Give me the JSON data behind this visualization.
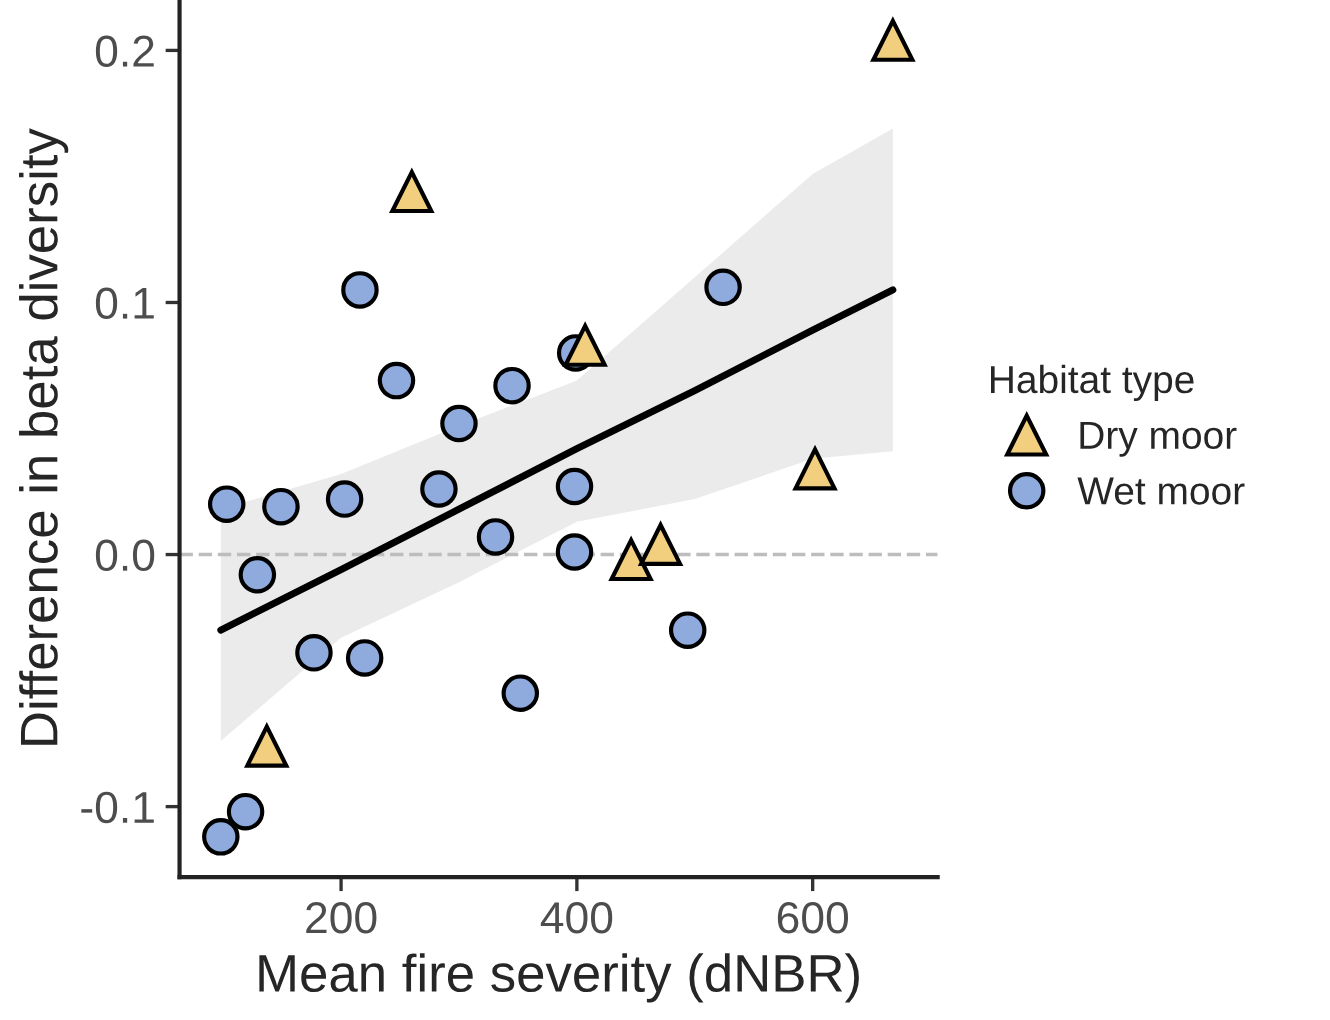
{
  "chart_data": {
    "type": "scatter",
    "xlabel": "Mean fire severity (dNBR)",
    "ylabel": "Difference in beta diversity",
    "legend_title": "Habitat type",
    "legend": "right",
    "grid": false,
    "xlim": [
      63,
      706
    ],
    "xticks": [
      200,
      400,
      600
    ],
    "ylim": [
      -0.128,
      0.22
    ],
    "yticks": [
      {
        "value": -0.1,
        "label": "-0.1"
      },
      {
        "value": 0.0,
        "label": "0.0"
      },
      {
        "value": 0.1,
        "label": "0.1"
      },
      {
        "value": 0.2,
        "label": "0.2"
      }
    ],
    "ref_lines": [
      {
        "axis": "y",
        "value": 0,
        "color": "#bdbdbd",
        "line_style": "dashed"
      }
    ],
    "series": [
      {
        "type": "line",
        "color": "#000000",
        "x": [
          98,
          200,
          300,
          400,
          500,
          600,
          668
        ],
        "values": [
          -0.03,
          -0.006,
          0.018,
          0.042,
          0.065,
          0.089,
          0.105
        ],
        "lower": [
          -0.074,
          -0.033,
          -0.011,
          0.013,
          0.022,
          0.038,
          0.041
        ],
        "upper": [
          0.018,
          0.032,
          0.051,
          0.069,
          0.11,
          0.151,
          0.169
        ]
      },
      {
        "name": "Dry moor",
        "marker": "triangle",
        "color": "#f2cf7e",
        "x": [
          137,
          260,
          407,
          446,
          471,
          602,
          668
        ],
        "values": [
          -0.076,
          0.144,
          0.083,
          -0.002,
          0.004,
          0.034,
          0.204
        ]
      },
      {
        "name": "Wet moor",
        "marker": "circle",
        "color": "#8faadc",
        "x": [
          103,
          149,
          203,
          283,
          331,
          398,
          398,
          129,
          177,
          220,
          352,
          119,
          98,
          216,
          247,
          345,
          300,
          399,
          524,
          494
        ],
        "values": [
          0.02,
          0.019,
          0.022,
          0.026,
          0.007,
          0.027,
          0.001,
          -0.008,
          -0.039,
          -0.041,
          -0.055,
          -0.102,
          -0.112,
          0.105,
          0.069,
          0.067,
          0.052,
          0.08,
          0.106,
          -0.03
        ]
      }
    ]
  }
}
